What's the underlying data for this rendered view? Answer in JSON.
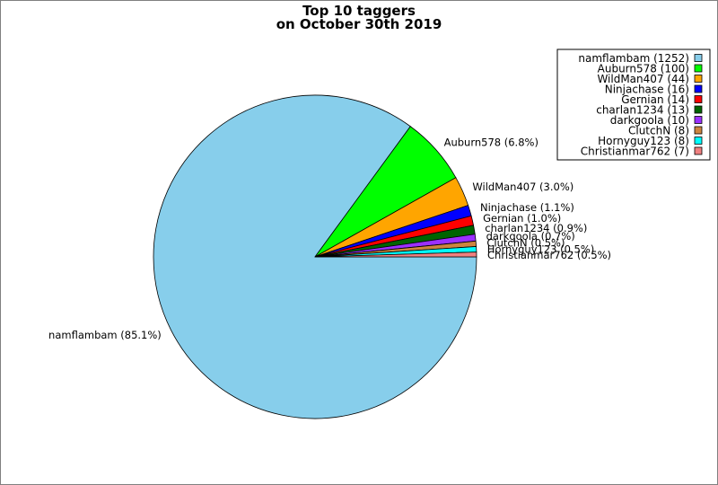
{
  "chart_data": {
    "type": "pie",
    "title": "Top 10 taggers",
    "subtitle": "on October 30th 2019",
    "legend_position": "top-right",
    "slices": [
      {
        "name": "namflambam",
        "value": 1252,
        "percent_label": "85.1%",
        "color": "#87CEEB"
      },
      {
        "name": "Auburn578",
        "value": 100,
        "percent_label": "6.8%",
        "color": "#00FF00"
      },
      {
        "name": "WildMan407",
        "value": 44,
        "percent_label": "3.0%",
        "color": "#FFA500"
      },
      {
        "name": "Ninjachase",
        "value": 16,
        "percent_label": "1.1%",
        "color": "#0000FF"
      },
      {
        "name": "Gernian",
        "value": 14,
        "percent_label": "1.0%",
        "color": "#FF0000"
      },
      {
        "name": "charlan1234",
        "value": 13,
        "percent_label": "0.9%",
        "color": "#006400"
      },
      {
        "name": "darkgoola",
        "value": 10,
        "percent_label": "0.7%",
        "color": "#9B30FF"
      },
      {
        "name": "ClutchN",
        "value": 8,
        "percent_label": "0.5%",
        "color": "#CD853F"
      },
      {
        "name": "Hornyguy123",
        "value": 8,
        "percent_label": "0.5%",
        "color": "#00FFFF"
      },
      {
        "name": "Christianmar762",
        "value": 7,
        "percent_label": "0.5%",
        "color": "#F08080"
      }
    ]
  }
}
